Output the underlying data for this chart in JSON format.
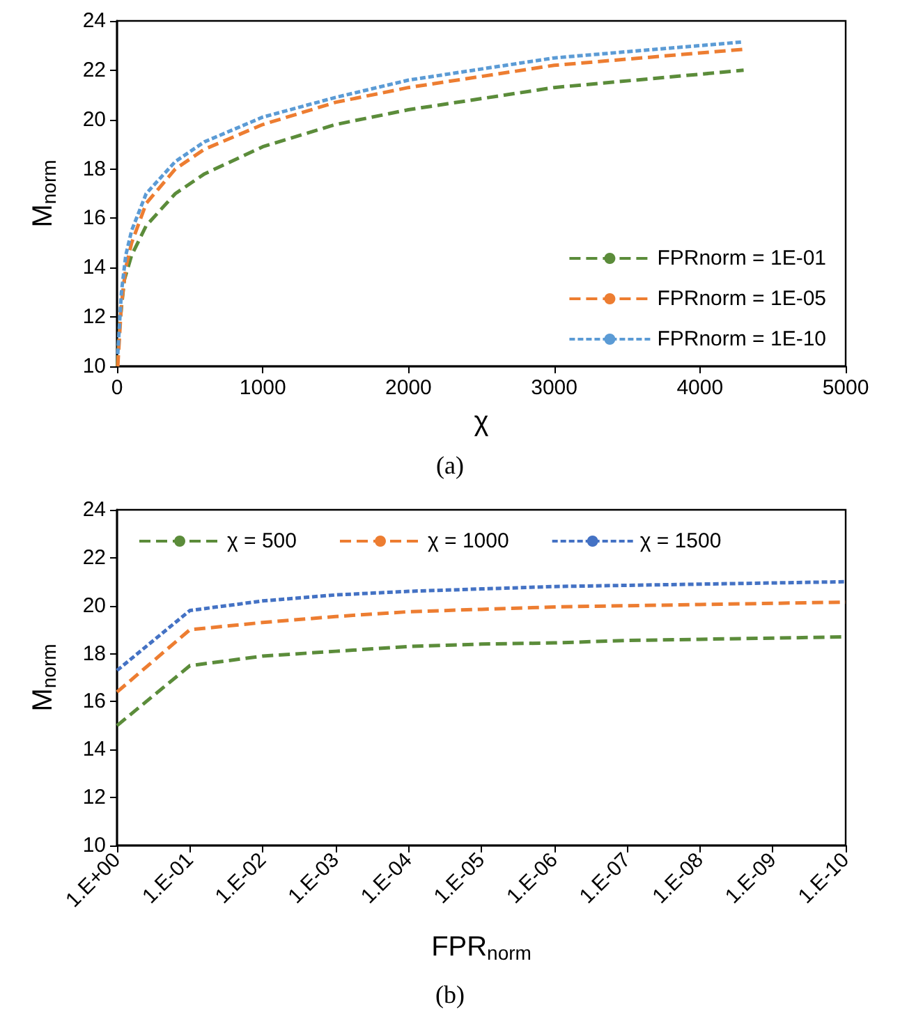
{
  "chart_data": [
    {
      "type": "line",
      "xlabel": "χ",
      "ylabel": "M$_{norm}$",
      "annotations": [
        "(a)"
      ],
      "xlim": [
        0,
        5000
      ],
      "ylim": [
        10,
        24
      ],
      "xticks": [
        0,
        1000,
        2000,
        3000,
        4000,
        5000
      ],
      "yticks": [
        10,
        12,
        14,
        16,
        18,
        20,
        22,
        24
      ],
      "grid": false,
      "legend": "bottom right",
      "marker": "none",
      "series": [
        {
          "name": "FPRnorm = 1E-01",
          "color": "#5b8c3a",
          "line_style": "dashed",
          "x": [
            2,
            20,
            50,
            100,
            200,
            400,
            600,
            1000,
            1500,
            2000,
            3000,
            4300
          ],
          "values": [
            10,
            11.8,
            13.5,
            14.5,
            15.7,
            17.0,
            17.8,
            18.9,
            19.8,
            20.4,
            21.3,
            22.0
          ]
        },
        {
          "name": "FPRnorm = 1E-05",
          "color": "#ed7d31",
          "line_style": "dashed",
          "x": [
            5,
            30,
            60,
            100,
            200,
            400,
            600,
            1000,
            1500,
            2000,
            3000,
            4300
          ],
          "values": [
            10,
            12.5,
            14.0,
            15.0,
            16.6,
            18.0,
            18.8,
            19.8,
            20.7,
            21.3,
            22.2,
            22.85
          ]
        },
        {
          "name": "FPRnorm = 1E-10",
          "color": "#5b9bd5",
          "line_style": "dotted",
          "x": [
            5,
            30,
            60,
            100,
            200,
            400,
            600,
            1000,
            1500,
            2000,
            3000,
            4300
          ],
          "values": [
            10.5,
            13.0,
            14.5,
            15.5,
            17.0,
            18.3,
            19.1,
            20.1,
            20.9,
            21.6,
            22.5,
            23.15
          ]
        }
      ]
    },
    {
      "type": "line",
      "xlabel": "FPR$_{norm}$",
      "ylabel": "M$_{norm}$",
      "annotations": [
        "(b)"
      ],
      "ylim": [
        10,
        24
      ],
      "categories": [
        "1.E+00",
        "1.E-01",
        "1.E-02",
        "1.E-03",
        "1.E-04",
        "1.E-05",
        "1.E-06",
        "1.E-07",
        "1.E-08",
        "1.E-09",
        "1.E-10"
      ],
      "yticks": [
        10,
        12,
        14,
        16,
        18,
        20,
        22,
        24
      ],
      "grid": false,
      "legend": "top",
      "marker": "none",
      "series": [
        {
          "name": "χ = 500",
          "color": "#5b8c3a",
          "line_style": "dashed",
          "values": [
            15.0,
            17.5,
            17.9,
            18.1,
            18.3,
            18.4,
            18.45,
            18.55,
            18.6,
            18.65,
            18.7
          ]
        },
        {
          "name": "χ = 1000",
          "color": "#ed7d31",
          "line_style": "dashed",
          "values": [
            16.4,
            19.0,
            19.3,
            19.55,
            19.75,
            19.85,
            19.95,
            20.0,
            20.05,
            20.1,
            20.15
          ]
        },
        {
          "name": "χ = 1500",
          "color": "#4472c4",
          "line_style": "dotted",
          "values": [
            17.3,
            19.8,
            20.2,
            20.45,
            20.6,
            20.7,
            20.8,
            20.85,
            20.9,
            20.95,
            21.0
          ]
        }
      ]
    }
  ]
}
